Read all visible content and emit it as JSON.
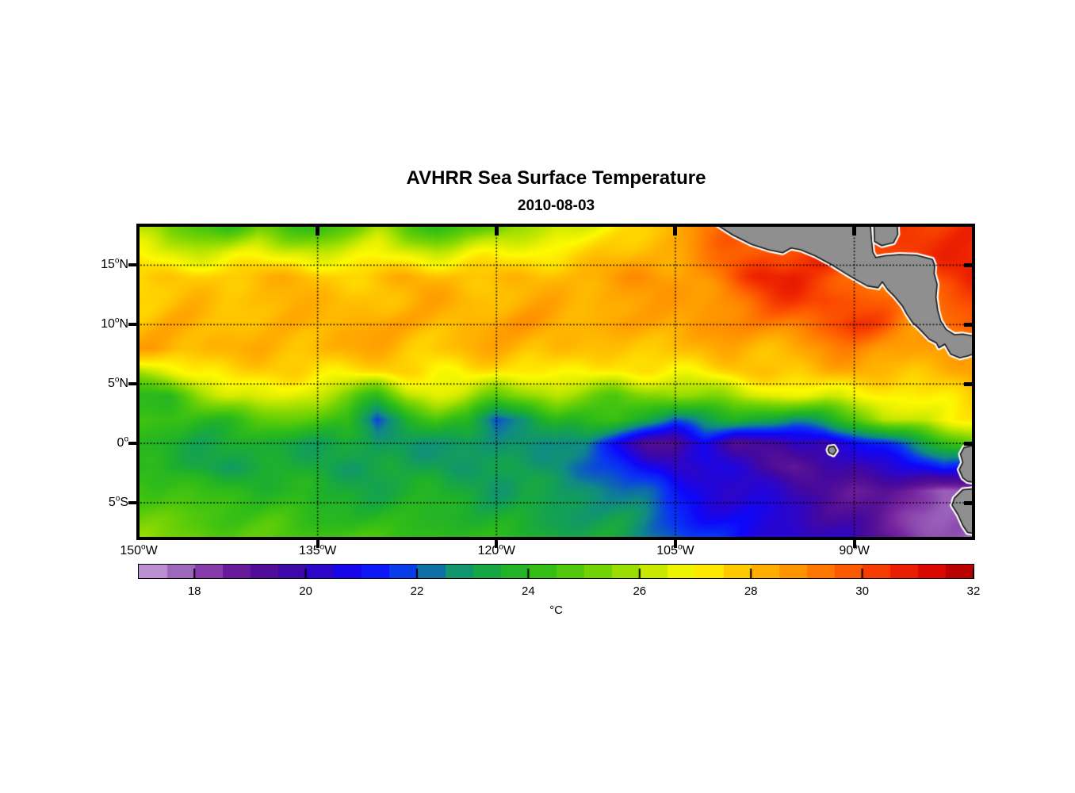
{
  "title": "AVHRR Sea Surface Temperature",
  "subtitle": "2010-08-03",
  "chart_data": {
    "type": "heatmap",
    "title": "AVHRR Sea Surface Temperature",
    "date": "2010-08-03",
    "units": "°C",
    "lon_range": [
      -150,
      -80
    ],
    "lat_range": [
      -8,
      18.3
    ],
    "x_ticks": [
      {
        "value": -150,
        "num": "150",
        "suffix": "W"
      },
      {
        "value": -135,
        "num": "135",
        "suffix": "W"
      },
      {
        "value": -120,
        "num": "120",
        "suffix": "W"
      },
      {
        "value": -105,
        "num": "105",
        "suffix": "W"
      },
      {
        "value": -90,
        "num": "90",
        "suffix": "W"
      }
    ],
    "y_ticks": [
      {
        "value": 15,
        "num": "15",
        "suffix": "N"
      },
      {
        "value": 10,
        "num": "10",
        "suffix": "N"
      },
      {
        "value": 5,
        "num": "5",
        "suffix": "N"
      },
      {
        "value": 0,
        "num": "0",
        "suffix": ""
      },
      {
        "value": -5,
        "num": "5",
        "suffix": "S"
      }
    ],
    "gridline_lons": [
      -135,
      -120,
      -105,
      -90
    ],
    "gridline_lats": [
      15,
      10,
      5,
      0,
      -5
    ],
    "colorbar": {
      "min": 17,
      "max": 32,
      "band_size": 0.5,
      "label": "°C",
      "ticks": [
        18,
        20,
        22,
        24,
        26,
        28,
        30,
        32
      ]
    },
    "colormap_stops": [
      [
        17.0,
        "#caa8db"
      ],
      [
        17.5,
        "#aa79c5"
      ],
      [
        18.0,
        "#9355b4"
      ],
      [
        18.5,
        "#7724a0"
      ],
      [
        19.0,
        "#581296"
      ],
      [
        19.6,
        "#44089e"
      ],
      [
        20.0,
        "#3506b9"
      ],
      [
        20.6,
        "#1e05e1"
      ],
      [
        21.0,
        "#0d07fb"
      ],
      [
        21.7,
        "#0936f2"
      ],
      [
        22.1,
        "#0d62b8"
      ],
      [
        22.5,
        "#108a85"
      ],
      [
        23.0,
        "#12a055"
      ],
      [
        23.6,
        "#1eb02c"
      ],
      [
        24.2,
        "#32bd17"
      ],
      [
        24.8,
        "#54ca0b"
      ],
      [
        25.4,
        "#7ed503"
      ],
      [
        26.0,
        "#b2e400"
      ],
      [
        26.6,
        "#e5f000"
      ],
      [
        27.0,
        "#fdfa00"
      ],
      [
        27.6,
        "#ffd200"
      ],
      [
        28.2,
        "#ffb000"
      ],
      [
        28.8,
        "#ff9100"
      ],
      [
        29.4,
        "#ff6f00"
      ],
      [
        30.0,
        "#fb4b00"
      ],
      [
        30.6,
        "#ef2600"
      ],
      [
        31.2,
        "#dd0a00"
      ],
      [
        31.6,
        "#c60200"
      ],
      [
        32.0,
        "#a50000"
      ]
    ],
    "grid_lons": [
      -150,
      -147.5,
      -145,
      -142.5,
      -140,
      -137.5,
      -135,
      -132.5,
      -130,
      -127.5,
      -125,
      -122.5,
      -120,
      -117.5,
      -115,
      -112.5,
      -110,
      -107.5,
      -105,
      -102.5,
      -100,
      -97.5,
      -95,
      -92.5,
      -90,
      -87.5,
      -85,
      -82.5,
      -80
    ],
    "grid_lats": [
      18,
      16,
      14,
      12,
      10,
      8,
      6,
      4,
      2,
      0,
      -2,
      -4,
      -6,
      -8
    ],
    "sst": [
      [
        26.0,
        25.0,
        24.6,
        24.5,
        25.3,
        24.5,
        24.2,
        25.0,
        25.7,
        24.8,
        24.4,
        25.2,
        24.8,
        25.6,
        26.4,
        26.8,
        27.2,
        27.6,
        28.2,
        29.2,
        29.4,
        29.6,
        29.8,
        30.0,
        30.2,
        30.3,
        30.4,
        30.5,
        30.6
      ],
      [
        26.6,
        26.5,
        26.3,
        26.5,
        26.6,
        26.4,
        26.3,
        26.5,
        26.6,
        26.5,
        26.4,
        26.6,
        26.8,
        27.0,
        27.2,
        27.4,
        27.7,
        28.0,
        28.4,
        28.9,
        29.4,
        29.9,
        30.1,
        30.3,
        30.2,
        30.1,
        30.2,
        30.4,
        30.5
      ],
      [
        27.6,
        27.7,
        27.8,
        27.8,
        27.9,
        27.8,
        27.8,
        27.9,
        28.0,
        27.9,
        27.8,
        27.9,
        28.0,
        28.0,
        28.1,
        28.2,
        28.3,
        28.5,
        28.7,
        29.1,
        29.7,
        30.4,
        30.8,
        30.2,
        29.3,
        28.9,
        29.1,
        30.1,
        30.4
      ],
      [
        27.9,
        28.0,
        28.1,
        28.0,
        28.1,
        28.2,
        28.1,
        28.2,
        28.2,
        28.1,
        28.2,
        28.3,
        28.2,
        28.3,
        28.4,
        28.3,
        28.4,
        28.5,
        28.6,
        28.9,
        29.3,
        29.8,
        30.2,
        30.5,
        30.1,
        29.6,
        29.0,
        29.8,
        30.2
      ],
      [
        27.9,
        28.0,
        28.1,
        28.2,
        28.1,
        28.2,
        28.3,
        28.2,
        28.3,
        28.4,
        28.3,
        28.4,
        28.3,
        28.4,
        28.5,
        28.4,
        28.5,
        28.4,
        28.5,
        28.7,
        28.9,
        29.1,
        29.5,
        29.9,
        30.2,
        29.8,
        29.0,
        29.6,
        29.8
      ],
      [
        28.2,
        28.1,
        28.0,
        28.1,
        28.2,
        28.1,
        28.0,
        28.1,
        28.0,
        27.9,
        28.0,
        28.1,
        28.0,
        27.9,
        28.0,
        27.9,
        27.8,
        27.9,
        27.8,
        27.9,
        28.0,
        28.2,
        28.4,
        28.6,
        28.8,
        28.7,
        28.4,
        28.5,
        28.4
      ],
      [
        25.6,
        26.4,
        27.2,
        27.4,
        27.5,
        27.3,
        27.2,
        27.4,
        27.3,
        27.2,
        27.0,
        27.2,
        27.1,
        27.0,
        27.2,
        27.0,
        26.9,
        27.0,
        27.1,
        27.2,
        27.4,
        27.6,
        27.8,
        28.0,
        28.1,
        27.9,
        27.8,
        28.0,
        28.2
      ],
      [
        24.4,
        24.0,
        25.6,
        26.4,
        26.6,
        26.4,
        26.2,
        25.4,
        24.4,
        25.8,
        26.2,
        26.0,
        25.2,
        25.6,
        26.0,
        25.4,
        24.6,
        25.2,
        25.6,
        25.8,
        26.0,
        26.2,
        26.4,
        26.6,
        27.0,
        27.2,
        27.0,
        27.2,
        27.6
      ],
      [
        24.6,
        24.2,
        24.0,
        24.4,
        24.8,
        25.0,
        24.8,
        24.6,
        21.8,
        23.6,
        24.6,
        24.4,
        21.9,
        22.6,
        24.2,
        24.4,
        24.2,
        23.4,
        22.2,
        23.2,
        23.8,
        23.2,
        22.8,
        23.6,
        24.6,
        26.0,
        26.6,
        27.0,
        27.2
      ],
      [
        23.8,
        23.4,
        23.2,
        23.4,
        23.6,
        23.4,
        23.2,
        23.0,
        22.6,
        23.0,
        23.2,
        22.8,
        22.4,
        22.6,
        22.8,
        22.4,
        21.0,
        19.4,
        19.4,
        20.4,
        19.0,
        19.8,
        20.6,
        19.6,
        20.8,
        21.4,
        22.8,
        24.0,
        25.2
      ],
      [
        23.6,
        23.4,
        23.2,
        23.0,
        23.2,
        23.4,
        23.2,
        23.0,
        22.8,
        23.0,
        23.2,
        23.0,
        22.6,
        22.8,
        22.6,
        22.2,
        21.4,
        20.8,
        20.2,
        20.6,
        20.0,
        19.6,
        19.0,
        19.8,
        19.2,
        20.2,
        20.8,
        21.6,
        20.4
      ],
      [
        24.6,
        24.4,
        24.2,
        24.0,
        23.8,
        23.6,
        23.4,
        23.6,
        23.4,
        23.2,
        23.4,
        23.2,
        23.0,
        23.2,
        22.8,
        22.6,
        22.4,
        21.8,
        21.2,
        20.8,
        20.4,
        20.0,
        19.6,
        19.4,
        19.0,
        18.8,
        18.4,
        17.8,
        18.2
      ],
      [
        25.2,
        25.0,
        24.8,
        24.6,
        24.4,
        24.2,
        24.0,
        24.2,
        24.0,
        23.8,
        23.6,
        23.8,
        23.6,
        23.4,
        23.2,
        23.0,
        22.8,
        22.4,
        21.8,
        21.2,
        20.8,
        20.4,
        20.2,
        19.8,
        19.4,
        18.8,
        18.3,
        18.0,
        17.8
      ],
      [
        25.6,
        25.4,
        25.2,
        25.0,
        24.8,
        25.0,
        24.8,
        24.6,
        24.4,
        24.6,
        24.4,
        24.2,
        24.0,
        23.8,
        23.6,
        23.4,
        23.2,
        22.8,
        22.2,
        21.6,
        21.2,
        20.8,
        20.6,
        20.2,
        19.8,
        19.2,
        18.6,
        17.9,
        17.6
      ]
    ],
    "land_color": "#8f8f8f",
    "coast_outline_color": "#111111",
    "coast_buffer_color": "#ffffff",
    "land_polygons": {
      "central_america": [
        [
          -101.6,
          18.45
        ],
        [
          -100.2,
          17.55
        ],
        [
          -98.6,
          16.75
        ],
        [
          -97.2,
          16.3
        ],
        [
          -96.0,
          16.05
        ],
        [
          -95.3,
          16.45
        ],
        [
          -94.5,
          16.3
        ],
        [
          -93.3,
          15.8
        ],
        [
          -92.0,
          15.1
        ],
        [
          -90.8,
          14.35
        ],
        [
          -89.8,
          13.75
        ],
        [
          -88.9,
          13.25
        ],
        [
          -88.0,
          13.1
        ],
        [
          -87.65,
          13.6
        ],
        [
          -87.2,
          12.95
        ],
        [
          -86.6,
          12.35
        ],
        [
          -85.95,
          11.55
        ],
        [
          -85.6,
          10.9
        ],
        [
          -85.1,
          10.15
        ],
        [
          -84.75,
          9.85
        ],
        [
          -84.4,
          9.5
        ],
        [
          -83.7,
          8.75
        ],
        [
          -83.1,
          8.45
        ],
        [
          -82.9,
          8.05
        ],
        [
          -82.4,
          8.35
        ],
        [
          -81.9,
          7.5
        ],
        [
          -81.15,
          7.2
        ],
        [
          -80.5,
          7.35
        ],
        [
          -79.8,
          7.6
        ],
        [
          -79.8,
          9.0
        ],
        [
          -80.9,
          9.2
        ],
        [
          -81.6,
          9.15
        ],
        [
          -82.3,
          9.6
        ],
        [
          -82.75,
          10.3
        ],
        [
          -83.0,
          11.2
        ],
        [
          -83.15,
          12.3
        ],
        [
          -83.05,
          13.4
        ],
        [
          -83.3,
          14.3
        ],
        [
          -83.25,
          15.0
        ],
        [
          -83.45,
          15.5
        ],
        [
          -84.8,
          15.85
        ],
        [
          -86.2,
          15.9
        ],
        [
          -87.4,
          15.8
        ],
        [
          -88.2,
          15.65
        ],
        [
          -88.45,
          16.1
        ],
        [
          -88.55,
          17.2
        ],
        [
          -88.65,
          18.45
        ]
      ],
      "caribbean_block": [
        [
          -88.35,
          18.45
        ],
        [
          -88.3,
          17.0
        ],
        [
          -87.7,
          16.65
        ],
        [
          -86.7,
          16.9
        ],
        [
          -86.35,
          17.6
        ],
        [
          -86.4,
          18.45
        ]
      ],
      "ecuador": [
        [
          -79.8,
          -0.1
        ],
        [
          -80.8,
          -0.35
        ],
        [
          -81.1,
          -0.9
        ],
        [
          -80.9,
          -1.6
        ],
        [
          -81.2,
          -2.2
        ],
        [
          -80.9,
          -2.9
        ],
        [
          -80.5,
          -3.2
        ],
        [
          -79.8,
          -3.3
        ]
      ],
      "peru": [
        [
          -79.8,
          -3.8
        ],
        [
          -80.9,
          -3.9
        ],
        [
          -81.6,
          -4.6
        ],
        [
          -81.8,
          -5.2
        ],
        [
          -81.3,
          -6.0
        ],
        [
          -80.9,
          -6.9
        ],
        [
          -80.5,
          -7.5
        ],
        [
          -79.8,
          -7.6
        ]
      ],
      "galapagos": [
        [
          -92.1,
          -0.3
        ],
        [
          -91.7,
          -0.25
        ],
        [
          -91.5,
          -0.6
        ],
        [
          -91.75,
          -0.95
        ],
        [
          -92.1,
          -0.8
        ],
        [
          -92.2,
          -0.55
        ]
      ]
    }
  }
}
